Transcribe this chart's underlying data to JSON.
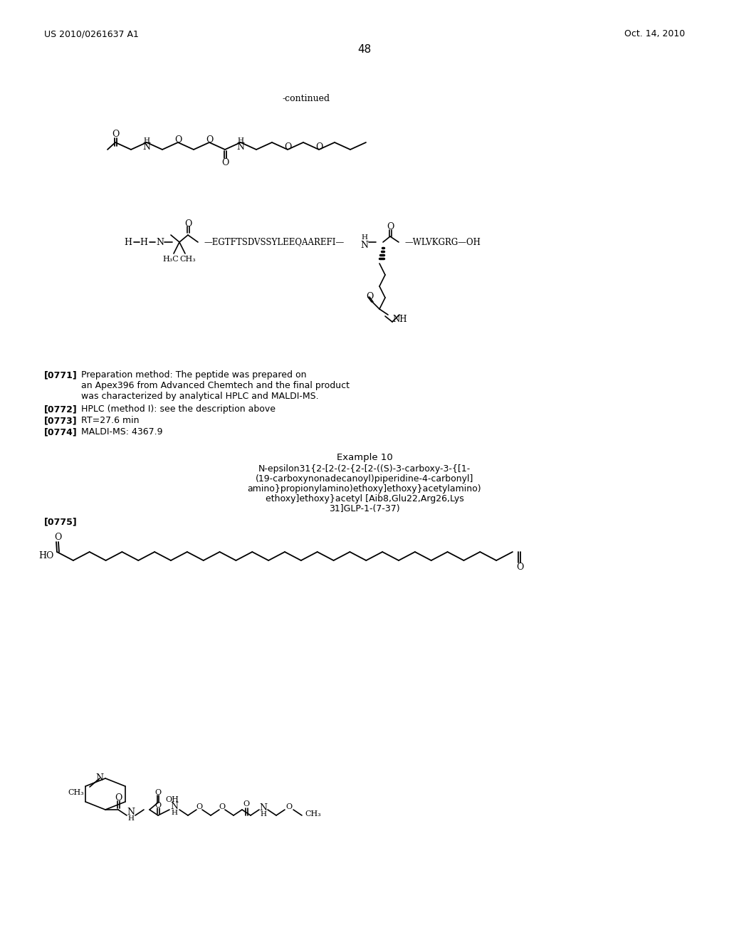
{
  "header_left": "US 2010/0261637 A1",
  "header_right": "Oct. 14, 2010",
  "page_number": "48",
  "continued_text": "-continued",
  "background_color": "#ffffff",
  "text_color": "#000000",
  "para_0771_tag": "[0771]",
  "para_0771_text": "Preparation method: The peptide was prepared on\nan Apex396 from Advanced Chemtech and the final product\nwas characterized by analytical HPLC and MALDI-MS.",
  "para_0772_tag": "[0772]",
  "para_0772_text": "HPLC (method I): see the description above",
  "para_0773_tag": "[0773]",
  "para_0773_text": "RT=27.6 min",
  "para_0774_tag": "[0774]",
  "para_0774_text": "MALDI-MS: 4367.9",
  "example10_title": "Example 10",
  "example10_line1": "N-epsilon31{2-[2-(2-{2-[2-((S)-3-carboxy-3-{[1-",
  "example10_line2": "(19-carboxynonadecanoyl)piperidine-4-carbonyl]",
  "example10_line3": "amino}propionylamino)ethoxy]ethoxy}acetylamino)",
  "example10_line4": "ethoxy]ethoxy}acetyl [Aib8,Glu22,Arg26,Lys",
  "example10_line5": "31]GLP-1-(7-37)",
  "para_0775_tag": "[0775]"
}
